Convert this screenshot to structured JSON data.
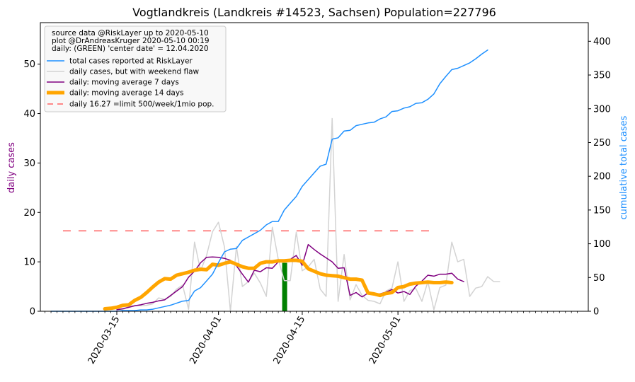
{
  "chart_data": {
    "type": "line",
    "title": "Vogtlandkreis (Landkreis #14523, Sachsen) Population=227796",
    "ylabel_left": "daily cases",
    "ylabel_right": "cumulative total cases",
    "ylim_left": [
      0,
      58.4
    ],
    "ylim_right": [
      0,
      427.6
    ],
    "yticks_left": [
      "0",
      "10",
      "20",
      "30",
      "40",
      "50"
    ],
    "yticks_right": [
      "0",
      "50",
      "100",
      "150",
      "200",
      "250",
      "300",
      "350",
      "400"
    ],
    "xticks": [
      "2020-03-15",
      "2020-04-01",
      "2020-04-15",
      "2020-05-01"
    ],
    "grid": false,
    "legend_position": "top-left",
    "legend_text": [
      "source data @RiskLayer up to 2020-05-10",
      "plot @DrAndreasKruger 2020-05-10 00:19",
      "daily: (GREEN) 'center date' = 12.04.2020"
    ],
    "legend_entries": [
      {
        "label": "total cases reported at RiskLayer",
        "color": "#1e90ff"
      },
      {
        "label": "daily cases, but with weekend flaw",
        "color": "#d3d3d3"
      },
      {
        "label": "daily: moving average 7 days",
        "color": "#800080"
      },
      {
        "label": "daily: moving average 14 days",
        "color": "#ffa500"
      },
      {
        "label": "daily 16.27 =limit 500/week/1mio pop.",
        "color": "#ff6b6b"
      }
    ],
    "center_date": "2020-04-12",
    "center_value": 9.8,
    "limit_value": 16.27,
    "limit_range": [
      "2020-03-06",
      "2020-05-07"
    ],
    "cumulative_start": "2020-03-04",
    "cumulative": [
      0,
      0,
      0,
      0,
      0,
      0,
      0,
      0,
      0,
      0,
      0,
      0,
      1,
      1,
      1,
      2,
      2,
      3,
      5,
      7,
      9,
      12,
      15,
      16,
      30,
      35,
      45,
      55,
      72,
      88,
      92,
      93,
      105,
      110,
      115,
      120,
      128,
      133,
      133,
      150,
      160,
      170,
      185,
      195,
      205,
      215,
      218,
      255,
      257,
      267,
      268,
      275,
      277,
      279,
      280,
      285,
      288,
      296,
      297,
      301,
      303,
      308,
      309,
      314,
      322,
      337,
      348,
      358,
      360,
      364,
      368,
      374,
      381,
      387
    ],
    "daily_start": "2020-03-15",
    "daily": [
      0.6,
      0.3,
      1,
      1.2,
      1.1,
      1.2,
      1.5,
      2.7,
      2.4,
      3,
      4.5,
      5.3,
      0.4,
      14,
      8.2,
      11.3,
      16.1,
      18,
      13,
      0,
      13.1,
      5,
      6,
      7.7,
      5.7,
      3,
      17,
      10.5,
      6.2,
      6.2,
      16,
      8.2,
      9,
      10.5,
      4.5,
      3,
      39,
      2,
      11.5,
      2.3,
      5.4,
      3.2,
      2.2,
      2,
      1.5,
      4.1,
      4.7,
      10,
      2,
      4.2,
      4.6,
      2,
      6,
      0.3,
      4.8,
      5.3,
      14,
      10,
      10.5,
      3,
      4.7,
      5,
      7,
      6,
      6
    ],
    "ma7_start": "2020-03-15",
    "ma7": [
      0.3,
      0.5,
      0.8,
      1.1,
      1.3,
      1.6,
      1.8,
      2.1,
      2.3,
      3.2,
      4.1,
      5,
      6.9,
      8.1,
      9.8,
      10.9,
      11,
      10.9,
      10.7,
      10.3,
      9.2,
      7.5,
      5.9,
      8.3,
      8,
      8.8,
      8.7,
      10,
      10.1,
      10.5,
      11.3,
      9.3,
      13.5,
      12.5,
      11.6,
      10.8,
      10,
      8.7,
      8.8,
      3.2,
      3.8,
      2.9,
      3.7,
      3.5,
      3.5,
      3.9,
      4.4,
      3.7,
      4,
      3.4,
      5.1,
      6.1,
      7.3,
      7.1,
      7.5,
      7.5,
      7.7,
      6.5,
      6
    ],
    "ma14_start": "2020-03-13",
    "ma14": [
      0.5,
      0.6,
      0.8,
      1.2,
      1.3,
      2.2,
      2.8,
      3.8,
      4.9,
      5.9,
      6.6,
      6.5,
      7.3,
      7.6,
      7.9,
      8.3,
      8.5,
      8.4,
      9.5,
      9.3,
      9.7,
      10,
      9.5,
      9,
      8.7,
      8.7,
      9.7,
      10,
      10,
      10.2,
      10.2,
      10.3,
      10.3,
      10.1,
      8.6,
      8.1,
      7.6,
      7.3,
      7.2,
      7.1,
      6.8,
      6.5,
      6.5,
      6.3,
      3.7,
      3.5,
      3.2,
      3.6,
      3.8,
      4.8,
      5,
      5.5,
      5.7,
      5.8,
      5.9,
      5.8,
      5.8,
      5.9,
      5.8
    ]
  }
}
